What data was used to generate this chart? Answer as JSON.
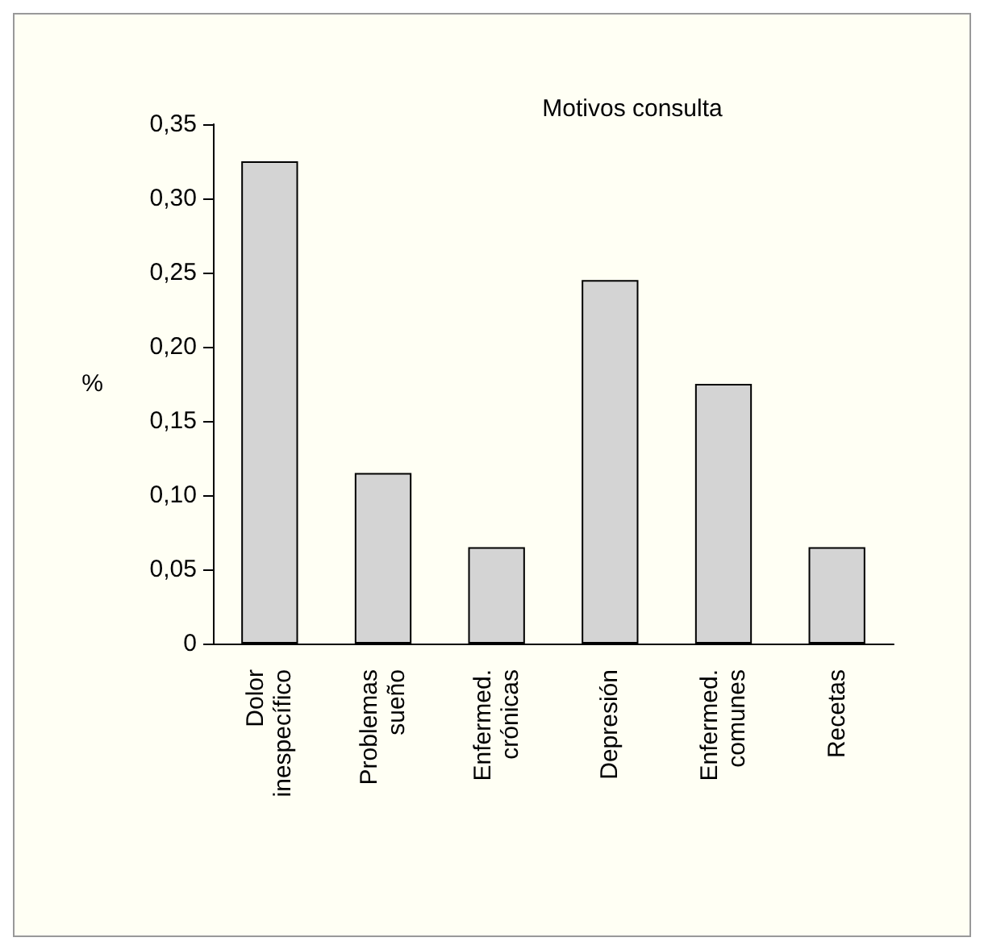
{
  "chart_data": {
    "type": "bar",
    "title": "Motivos consulta",
    "ylabel": "%",
    "categories": [
      "Dolor\ninespecífico",
      "Problemas\nsueño",
      "Enfermed.\ncrónicas",
      "Depresión",
      "Enfermed.\ncomunes",
      "Recetas"
    ],
    "values": [
      0.325,
      0.115,
      0.065,
      0.245,
      0.175,
      0.065
    ],
    "color": "#d4d4d4",
    "ylim": [
      0,
      0.35
    ],
    "yticks": [
      {
        "value": 0,
        "label": "0"
      },
      {
        "value": 0.05,
        "label": "0,05"
      },
      {
        "value": 0.1,
        "label": "0,10"
      },
      {
        "value": 0.15,
        "label": "0,15"
      },
      {
        "value": 0.2,
        "label": "0,20"
      },
      {
        "value": 0.25,
        "label": "0,25"
      },
      {
        "value": 0.3,
        "label": "0,30"
      },
      {
        "value": 0.35,
        "label": "0,35"
      }
    ]
  }
}
